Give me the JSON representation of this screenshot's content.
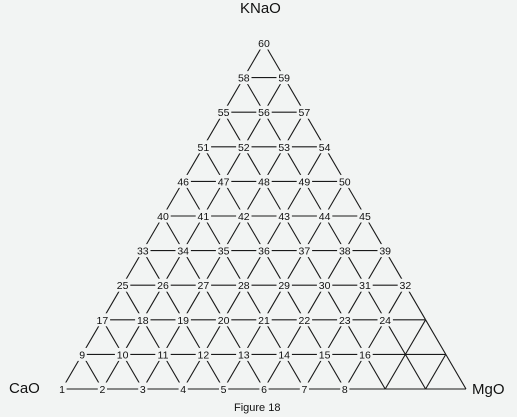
{
  "apexes": {
    "top": "KNaO",
    "left": "CaO",
    "right": "MgO"
  },
  "caption": "Figure 18",
  "diagram_type": "ternary triangular grid with numbered nodes",
  "rows": [
    [
      "1",
      "2",
      "3",
      "4",
      "5",
      "6",
      "7",
      "8"
    ],
    [
      "9",
      "10",
      "11",
      "12",
      "13",
      "14",
      "15",
      "16"
    ],
    [
      "17",
      "18",
      "19",
      "20",
      "21",
      "22",
      "23",
      "24"
    ],
    [
      "25",
      "26",
      "27",
      "28",
      "29",
      "30",
      "31",
      "32"
    ],
    [
      "33",
      "34",
      "35",
      "36",
      "37",
      "38",
      "39"
    ],
    [
      "40",
      "41",
      "42",
      "43",
      "44",
      "45"
    ],
    [
      "46",
      "47",
      "48",
      "49",
      "50"
    ],
    [
      "51",
      "52",
      "53",
      "54"
    ],
    [
      "55",
      "56",
      "57"
    ],
    [
      "58",
      "59"
    ],
    [
      "60"
    ]
  ]
}
